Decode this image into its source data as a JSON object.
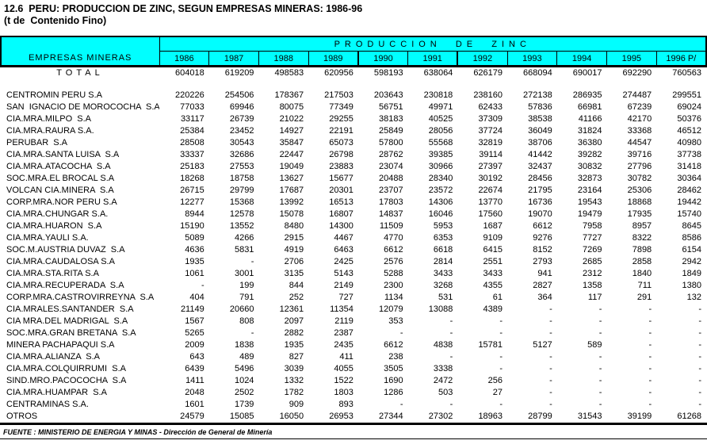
{
  "title": "12.6  PERU: PRODUCCION DE ZINC, SEGUN EMPRESAS MINERAS: 1986-96",
  "subtitle": "(t de  Contenido Fino)",
  "source_note": "FUENTE : MINISTERIO DE ENERGIA Y MINAS - Dirección de General de Minería",
  "colors": {
    "header_bg": "#00FFFF",
    "border": "#000000",
    "text": "#000000",
    "page_bg": "#FFFFFF"
  },
  "table": {
    "left_header": "EMPRESAS MINERAS",
    "group_header": "PRODUCCION  DE  ZINC",
    "years": [
      "1986",
      "1987",
      "1988",
      "1989",
      "1990",
      "1991",
      "1992",
      "1993",
      "1994",
      "1995",
      "1996 P/"
    ],
    "total": {
      "label": "TOTAL",
      "values": [
        604018,
        619209,
        498583,
        620956,
        598193,
        638064,
        626179,
        668094,
        690017,
        692290,
        760563
      ]
    },
    "rows": [
      {
        "name": "CENTROMIN PERU S.A",
        "values": [
          220226,
          254506,
          178367,
          217503,
          203643,
          230818,
          238160,
          272138,
          286935,
          274487,
          299551
        ]
      },
      {
        "name": "SAN  IGNACIO DE MOROCOCHA  S.A",
        "values": [
          77033,
          69946,
          80075,
          77349,
          56751,
          49971,
          62433,
          57836,
          66981,
          67239,
          69024
        ]
      },
      {
        "name": "CIA.MRA.MILPO  S.A",
        "values": [
          33117,
          26739,
          21022,
          29255,
          38183,
          40525,
          37309,
          38538,
          41166,
          42170,
          50376
        ]
      },
      {
        "name": "CIA.MRA.RAURA S.A.",
        "values": [
          25384,
          23452,
          14927,
          22191,
          25849,
          28056,
          37724,
          36049,
          31824,
          33368,
          46512
        ]
      },
      {
        "name": "PERUBAR  S.A",
        "values": [
          28508,
          30543,
          35847,
          65073,
          57800,
          55568,
          32819,
          38706,
          36380,
          44547,
          40980
        ]
      },
      {
        "name": "CIA.MRA.SANTA LUISA  S.A",
        "values": [
          33337,
          32686,
          22447,
          26798,
          28762,
          39385,
          39114,
          41442,
          39282,
          39716,
          37738
        ]
      },
      {
        "name": "CIA.MRA.ATACOCHA  S.A",
        "values": [
          25183,
          27553,
          19049,
          23883,
          23074,
          30966,
          27397,
          32437,
          30832,
          27796,
          31418
        ]
      },
      {
        "name": "SOC.MRA.EL BROCAL S.A",
        "values": [
          18268,
          18758,
          13627,
          15677,
          20488,
          28340,
          30192,
          28456,
          32873,
          30782,
          30364
        ]
      },
      {
        "name": "VOLCAN CIA.MINERA  S.A",
        "values": [
          26715,
          29799,
          17687,
          20301,
          23707,
          23572,
          22674,
          21795,
          23164,
          25306,
          28462
        ]
      },
      {
        "name": "CORP.MRA.NOR PERU S.A",
        "values": [
          12277,
          15368,
          13992,
          16513,
          17803,
          14306,
          13770,
          16736,
          19543,
          18868,
          19442
        ]
      },
      {
        "name": "CIA.MRA.CHUNGAR S.A.",
        "values": [
          8944,
          12578,
          15078,
          16807,
          14837,
          16046,
          17560,
          19070,
          19479,
          17935,
          15740
        ]
      },
      {
        "name": "CIA.MRA.HUARON  S.A",
        "values": [
          15190,
          13552,
          8480,
          14300,
          11509,
          5953,
          1687,
          6612,
          7958,
          8957,
          8645
        ]
      },
      {
        "name": "CIA.MRA.YAULI S.A.",
        "values": [
          5089,
          4266,
          2915,
          4467,
          4770,
          6353,
          9109,
          9276,
          7727,
          8322,
          8586
        ]
      },
      {
        "name": "SOC.M.AUSTRIA DUVAZ  S.A",
        "values": [
          4636,
          5831,
          4919,
          6463,
          6612,
          6618,
          6415,
          8152,
          7269,
          7898,
          6154
        ]
      },
      {
        "name": "CIA.MRA.CAUDALOSA S.A",
        "values": [
          1935,
          "-",
          2706,
          2425,
          2576,
          2814,
          2551,
          2793,
          2685,
          2858,
          2942
        ]
      },
      {
        "name": "CIA.MRA.STA.RITA S.A",
        "values": [
          1061,
          3001,
          3135,
          5143,
          5288,
          3433,
          3433,
          941,
          2312,
          1840,
          1849
        ]
      },
      {
        "name": "CIA.MRA.RECUPERADA  S.A",
        "values": [
          "-",
          199,
          844,
          2149,
          2300,
          3268,
          4355,
          2827,
          1358,
          711,
          1380
        ]
      },
      {
        "name": "CORP.MRA.CASTROVIRREYNA  S.A",
        "values": [
          404,
          791,
          252,
          727,
          1134,
          531,
          61,
          364,
          117,
          291,
          132
        ]
      },
      {
        "name": "CIA.MRALES.SANTANDER  S.A",
        "values": [
          21149,
          20660,
          12361,
          11354,
          12079,
          13088,
          4389,
          "-",
          "-",
          "-",
          "-"
        ]
      },
      {
        "name": "CIA MRA.DEL MADRIGAL  S.A",
        "values": [
          1567,
          808,
          2097,
          2119,
          353,
          "-",
          "-",
          "-",
          "-",
          "-",
          "-"
        ]
      },
      {
        "name": "SOC.MRA.GRAN BRETANA  S.A",
        "values": [
          5265,
          "-",
          2882,
          2387,
          "-",
          "-",
          "-",
          "-",
          "-",
          "-",
          "-"
        ]
      },
      {
        "name": "MINERA PACHAPAQUI S.A",
        "values": [
          2009,
          1838,
          1935,
          2435,
          6612,
          4838,
          15781,
          5127,
          589,
          "-",
          "-"
        ]
      },
      {
        "name": "CIA.MRA.ALIANZA  S.A",
        "values": [
          643,
          489,
          827,
          411,
          238,
          "-",
          "-",
          "-",
          "-",
          "-",
          "-"
        ]
      },
      {
        "name": "CIA.MRA.COLQUIRRUMI  S.A",
        "values": [
          6439,
          5496,
          3039,
          4055,
          3505,
          3338,
          "-",
          "-",
          "-",
          "-",
          "-"
        ]
      },
      {
        "name": "SIND.MRO.PACOCOCHA  S.A",
        "values": [
          1411,
          1024,
          1332,
          1522,
          1690,
          2472,
          256,
          "-",
          "-",
          "-",
          "-"
        ]
      },
      {
        "name": "CIA.MRA.HUAMPAR  S.A",
        "values": [
          2048,
          2502,
          1782,
          1803,
          1286,
          503,
          27,
          "-",
          "-",
          "-",
          "-"
        ]
      },
      {
        "name": "CENTRAMINAS S.A.",
        "values": [
          1601,
          1739,
          909,
          893,
          "-",
          "-",
          "-",
          "-",
          "-",
          "-",
          "-"
        ]
      },
      {
        "name": "OTROS",
        "values": [
          24579,
          15085,
          16050,
          26953,
          27344,
          27302,
          18963,
          28799,
          31543,
          39199,
          61268
        ]
      }
    ]
  }
}
